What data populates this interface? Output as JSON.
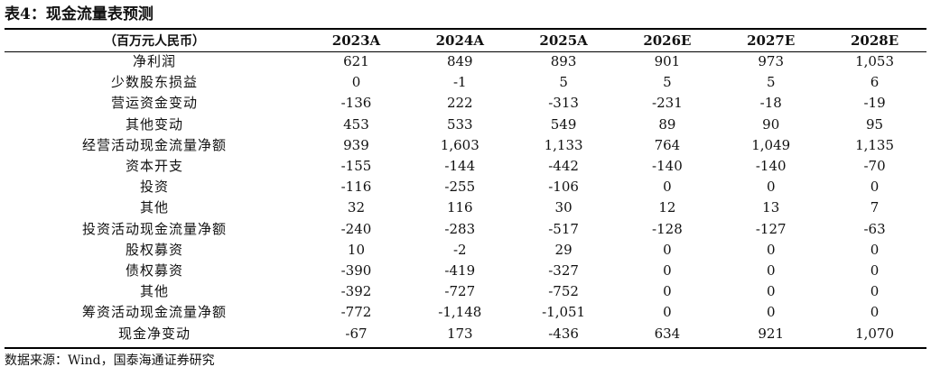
{
  "title": "表4：现金流量表预测",
  "table": {
    "unit_header": "（百万元人民币）",
    "columns": [
      "2023A",
      "2024A",
      "2025A",
      "2026E",
      "2027E",
      "2028E"
    ],
    "rows": [
      {
        "label": "净利润",
        "values": [
          "621",
          "849",
          "893",
          "901",
          "973",
          "1,053"
        ]
      },
      {
        "label": "少数股东损益",
        "values": [
          "0",
          "-1",
          "5",
          "5",
          "5",
          "6"
        ]
      },
      {
        "label": "营运资金变动",
        "values": [
          "-136",
          "222",
          "-313",
          "-231",
          "-18",
          "-19"
        ]
      },
      {
        "label": "其他变动",
        "values": [
          "453",
          "533",
          "549",
          "89",
          "90",
          "95"
        ]
      },
      {
        "label": "经营活动现金流量净额",
        "values": [
          "939",
          "1,603",
          "1,133",
          "764",
          "1,049",
          "1,135"
        ]
      },
      {
        "label": "资本开支",
        "values": [
          "-155",
          "-144",
          "-442",
          "-140",
          "-140",
          "-70"
        ]
      },
      {
        "label": "投资",
        "values": [
          "-116",
          "-255",
          "-106",
          "0",
          "0",
          "0"
        ]
      },
      {
        "label": "其他",
        "values": [
          "32",
          "116",
          "30",
          "12",
          "13",
          "7"
        ]
      },
      {
        "label": "投资活动现金流量净额",
        "values": [
          "-240",
          "-283",
          "-517",
          "-128",
          "-127",
          "-63"
        ]
      },
      {
        "label": "股权募资",
        "values": [
          "10",
          "-2",
          "29",
          "0",
          "0",
          "0"
        ]
      },
      {
        "label": "债权募资",
        "values": [
          "-390",
          "-419",
          "-327",
          "0",
          "0",
          "0"
        ]
      },
      {
        "label": "其他",
        "values": [
          "-392",
          "-727",
          "-752",
          "0",
          "0",
          "0"
        ]
      },
      {
        "label": "筹资活动现金流量净额",
        "values": [
          "-772",
          "-1,148",
          "-1,051",
          "0",
          "0",
          "0"
        ]
      },
      {
        "label": "现金净变动",
        "values": [
          "-67",
          "173",
          "-436",
          "634",
          "921",
          "1,070"
        ]
      }
    ]
  },
  "source": "数据来源：Wind，国泰海通证券研究"
}
